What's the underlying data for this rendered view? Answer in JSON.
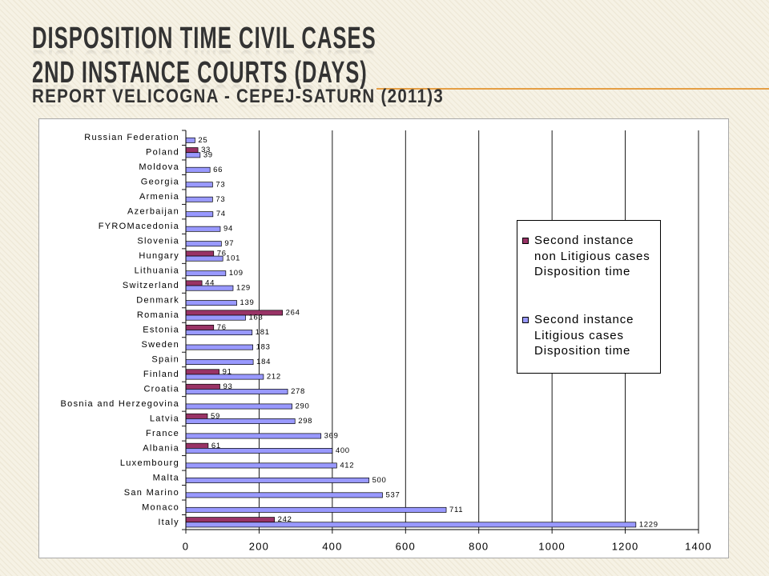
{
  "slide": {
    "title_line1": "DISPOSITION TIME CIVIL CASES",
    "title_line2": "2ND INSTANCE COURTS (DAYS)",
    "title_line3": "REPORT VELICOGNA - CEPEJ-SATURN (2011)3"
  },
  "theme_colors": {
    "background": "#F6F2E5",
    "accent_rule": "#E59F45",
    "title_text": "#333333"
  },
  "chart_data": {
    "type": "bar",
    "orientation": "horizontal",
    "xlim": [
      0,
      1400
    ],
    "x_ticks": [
      0,
      200,
      400,
      600,
      800,
      1000,
      1200,
      1400
    ],
    "grid": "vertical",
    "legend_position": "right",
    "categories": [
      "Russian Federation",
      "Poland",
      "Moldova",
      "Georgia",
      "Armenia",
      "Azerbaijan",
      "FYROMacedonia",
      "Slovenia",
      "Hungary",
      "Lithuania",
      "Switzerland",
      "Denmark",
      "Romania",
      "Estonia",
      "Sweden",
      "Spain",
      "Finland",
      "Croatia",
      "Bosnia and Herzegovina",
      "Latvia",
      "France",
      "Albania",
      "Luxembourg",
      "Malta",
      "San Marino",
      "Monaco",
      "Italy"
    ],
    "series": [
      {
        "name": "Second instance\nnon Litigious cases\nDisposition time",
        "color": "#993366",
        "values": [
          null,
          33,
          null,
          null,
          null,
          null,
          null,
          null,
          76,
          null,
          44,
          null,
          264,
          76,
          null,
          null,
          91,
          93,
          null,
          59,
          null,
          61,
          null,
          null,
          null,
          null,
          242
        ]
      },
      {
        "name": "Second instance\nLitigious cases\nDisposition time",
        "color": "#9999FF",
        "values": [
          25,
          39,
          66,
          73,
          73,
          74,
          94,
          97,
          101,
          109,
          129,
          139,
          163,
          181,
          183,
          184,
          212,
          278,
          290,
          298,
          369,
          400,
          412,
          500,
          537,
          711,
          1229
        ]
      }
    ]
  }
}
